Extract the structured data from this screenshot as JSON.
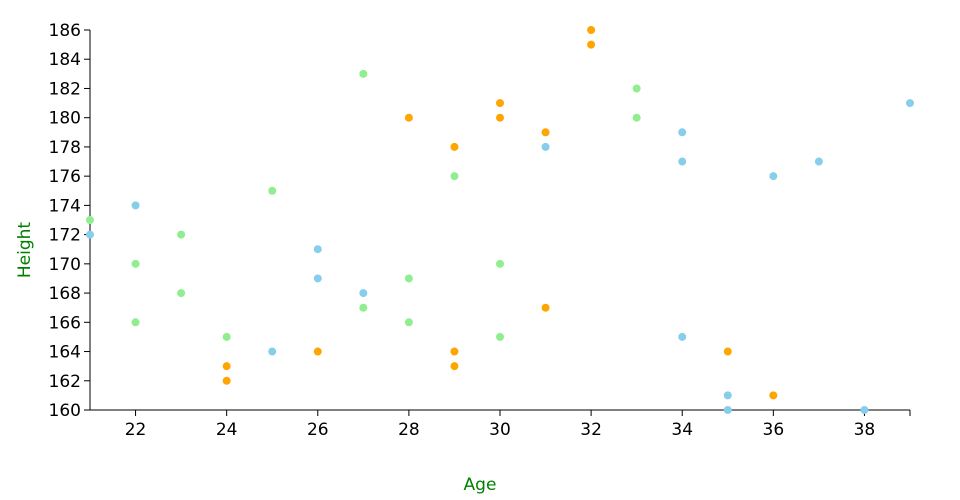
{
  "chart_data": {
    "type": "scatter",
    "x_label": "Age",
    "y_label": "Height",
    "label_color": "#008000",
    "xlim": [
      21,
      39
    ],
    "ylim": [
      160,
      186
    ],
    "xticks": [
      22,
      24,
      26,
      28,
      30,
      32,
      34,
      36,
      38
    ],
    "yticks": [
      160,
      162,
      164,
      166,
      168,
      170,
      172,
      174,
      176,
      178,
      180,
      182,
      184,
      186
    ],
    "series": [
      {
        "color": "#ffa500",
        "x": [
          24,
          24,
          26,
          28,
          29,
          29,
          29,
          30,
          30,
          31,
          31,
          32,
          32,
          35,
          36
        ],
        "y": [
          163,
          162,
          164,
          180,
          178,
          164,
          163,
          181,
          180,
          179,
          167,
          186,
          185,
          164,
          161
        ]
      },
      {
        "color": "#87ceeb",
        "x": [
          21,
          22,
          25,
          26,
          26,
          27,
          31,
          34,
          34,
          34,
          35,
          35,
          36,
          37,
          38,
          39
        ],
        "y": [
          172,
          174,
          164,
          171,
          169,
          168,
          178,
          179,
          177,
          165,
          161,
          160,
          176,
          177,
          160,
          181
        ]
      },
      {
        "color": "#90ee90",
        "x": [
          21,
          22,
          22,
          23,
          23,
          24,
          25,
          27,
          27,
          28,
          28,
          29,
          30,
          30,
          33,
          33
        ],
        "y": [
          173,
          170,
          166,
          172,
          168,
          165,
          175,
          183,
          167,
          169,
          166,
          176,
          170,
          165,
          182,
          180
        ]
      }
    ]
  }
}
